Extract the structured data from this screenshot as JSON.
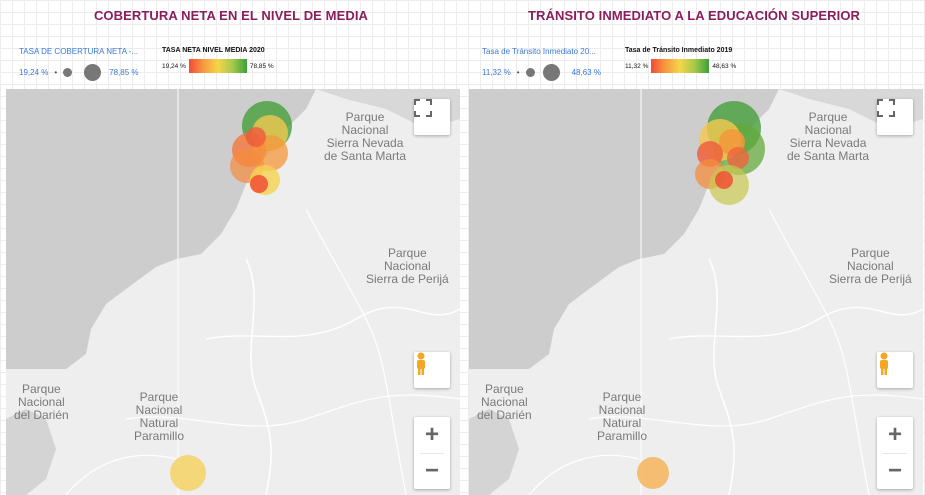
{
  "left": {
    "title": "COBERTURA NETA EN EL NIVEL DE MEDIA",
    "size_legend": {
      "label": "TASA DE COBERTURA NETA -...",
      "min": "19,24 %",
      "max": "78,85 %"
    },
    "color_legend": {
      "label": "TASA NETA NIVEL MEDIA 2020",
      "min": "19,24 %",
      "max": "78,85 %"
    },
    "map_labels": [
      "Parque\nNacional\nSierra Nevada\nde Santa Marta",
      "Parque\nNacional\nSierra de Perijá",
      "Parque\nNacional\ndel Darién",
      "Parque\nNacional\nNatural\nParamillo"
    ]
  },
  "right": {
    "title": "TRÁNSITO INMEDIATO A LA EDUCACIÓN SUPERIOR",
    "size_legend": {
      "label": "Tasa de Tránsito Inmediato 20...",
      "min": "11,32 %",
      "max": "48,63 %"
    },
    "color_legend": {
      "label": "Tasa de Tránsito Inmediato 2019",
      "min": "11,32 %",
      "max": "48,63 %"
    },
    "map_labels": [
      "Parque\nNacional\nSierra Nevada\nde Santa Marta",
      "Parque\nNacional\nSierra de Perijá",
      "Parque\nNacional\ndel Darién",
      "Parque\nNacional\nNatural\nParamillo"
    ]
  },
  "controls": {
    "zoom_in": "+",
    "zoom_out": "−"
  },
  "colors": {
    "title": "#8a1e5c",
    "size_legend_text": "#3a7ad9",
    "gradient_low": "#f4493a",
    "gradient_high": "#3ca03a",
    "water": "#cdcdcd",
    "land": "#eeeeee"
  },
  "icons": [
    "fullscreen-icon",
    "pegman-icon",
    "zoom-in-icon",
    "zoom-out-icon"
  ]
}
